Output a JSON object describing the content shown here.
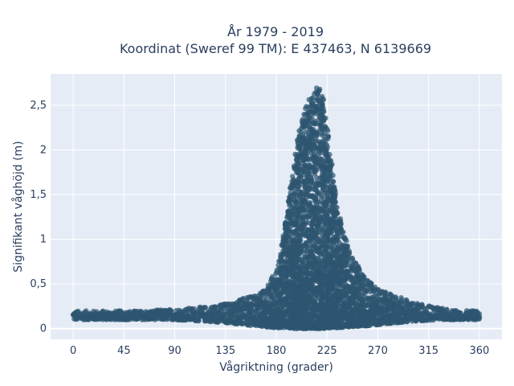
{
  "chart_data": {
    "type": "scatter",
    "title_lines": [
      "År 1979 - 2019",
      "Koordinat (Sweref 99 TM): E 437463, N 6139669"
    ],
    "xlabel": "Vågriktning (grader)",
    "ylabel": "Signifikant våghöjd (m)",
    "xlim": [
      -20,
      380
    ],
    "ylim": [
      -0.12,
      2.85
    ],
    "xticks": [
      0,
      45,
      90,
      135,
      180,
      225,
      270,
      315,
      360
    ],
    "xtick_labels": [
      "0",
      "45",
      "90",
      "135",
      "180",
      "225",
      "270",
      "315",
      "360"
    ],
    "yticks": [
      0,
      0.5,
      1,
      1.5,
      2,
      2.5
    ],
    "ytick_labels": [
      "0",
      "0,5",
      "1",
      "1,5",
      "2",
      "2,5"
    ],
    "grid": true,
    "marker_color": "#2e5570",
    "background_color": "#e5ecf6",
    "envelope": {
      "direction": [
        0,
        30,
        60,
        90,
        120,
        140,
        160,
        170,
        180,
        185,
        190,
        195,
        200,
        205,
        210,
        215,
        218,
        222,
        228,
        235,
        245,
        260,
        275,
        290,
        310,
        330,
        350,
        360
      ],
      "max_height": [
        0.2,
        0.2,
        0.2,
        0.22,
        0.25,
        0.3,
        0.37,
        0.45,
        0.65,
        0.95,
        1.35,
        1.8,
        2.2,
        2.45,
        2.6,
        2.7,
        2.73,
        2.6,
        2.0,
        1.3,
        0.85,
        0.55,
        0.42,
        0.35,
        0.27,
        0.22,
        0.2,
        0.2
      ],
      "min_height": [
        0.1,
        0.1,
        0.1,
        0.1,
        0.08,
        0.06,
        0.03,
        0.02,
        0.01,
        0.01,
        0.01,
        0.0,
        0.0,
        0.0,
        0.0,
        0.0,
        0.0,
        0.0,
        0.01,
        0.01,
        0.02,
        0.03,
        0.05,
        0.07,
        0.09,
        0.1,
        0.1,
        0.1
      ]
    }
  }
}
